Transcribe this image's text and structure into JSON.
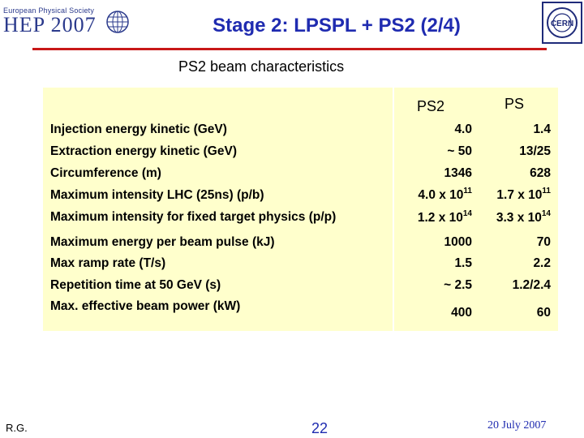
{
  "header": {
    "logo_small_text": "European Physical Society",
    "logo_big_text": "HEP 2007",
    "title": "Stage 2: LPSPL + PS2 (2/4)",
    "cern_logo_text": "CERN"
  },
  "subtitle": "PS2 beam characteristics",
  "table": {
    "col_ps2": "PS2",
    "col_ps": "PS",
    "rows": [
      {
        "label": "Injection energy kinetic (GeV)",
        "ps2": "4.0",
        "ps": "1.4"
      },
      {
        "label": "Extraction energy kinetic (GeV)",
        "ps2": "~ 50",
        "ps": "13/25"
      },
      {
        "label": "Circumference (m)",
        "ps2": "1346",
        "ps": "628"
      },
      {
        "label": "Maximum intensity LHC (25ns) (p/b)",
        "ps2_base": "4.0 x 10",
        "ps2_exp": "11",
        "ps_base": "1.7 x 10",
        "ps_exp": "11"
      },
      {
        "label": "Maximum intensity for fixed target physics (p/p)",
        "ps2_base": "1.2 x 10",
        "ps2_exp": "14",
        "ps_base": "3.3 x 10",
        "ps_exp": "14"
      },
      {
        "label": "Maximum energy per beam pulse (kJ)",
        "ps2": "1000",
        "ps": "70"
      },
      {
        "label": "Max ramp rate (T/s)",
        "ps2": "1.5",
        "ps": "2.2"
      },
      {
        "label": "Repetition time  at 50 GeV (s)",
        "ps2": "~ 2.5",
        "ps": "1.2/2.4"
      },
      {
        "label": "Max. effective beam power (kW)",
        "ps2": "400",
        "ps": "60"
      }
    ]
  },
  "footer": {
    "author": "R.G.",
    "page": "22",
    "date": "20 July 2007"
  },
  "colors": {
    "title": "#1f2bb0",
    "rule": "#c81818",
    "table_bg": "#ffffcc"
  }
}
